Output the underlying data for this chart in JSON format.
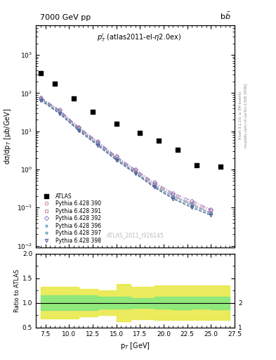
{
  "title_left": "7000 GeV pp",
  "title_right": "b$\\bar{b}$",
  "annotation": "$p_T^l$ (atlas2011-el-$\\eta$2.0ex)",
  "watermark": "ATLAS_2011_I926145",
  "rivet_text": "Rivet 3.1.10, ≥ 3M events",
  "arxiv_text": "mcplots.cern.ch [arXiv:1306.3436]",
  "ylabel_main": "dσ/dp$_T$ [μb/GeV]",
  "ylabel_ratio": "Ratio to ATLAS",
  "xlabel": "p$_T$ [GeV]",
  "atlas_x": [
    7.0,
    8.5,
    10.5,
    12.5,
    15.0,
    17.5,
    19.5,
    21.5,
    23.5,
    26.0
  ],
  "atlas_y": [
    330,
    175,
    72,
    32,
    16,
    9.0,
    5.8,
    3.3,
    1.3,
    1.2
  ],
  "pt_values": [
    7.0,
    9.0,
    11.0,
    13.0,
    15.0,
    17.0,
    19.0,
    21.0,
    23.0,
    25.0
  ],
  "py390_y": [
    75,
    35,
    12.5,
    5.2,
    2.1,
    0.95,
    0.43,
    0.22,
    0.13,
    0.085
  ],
  "py391_y": [
    73,
    33,
    12.0,
    5.0,
    2.0,
    0.88,
    0.4,
    0.2,
    0.12,
    0.075
  ],
  "py392_y": [
    77,
    36,
    13.0,
    5.5,
    2.2,
    1.0,
    0.46,
    0.24,
    0.15,
    0.09
  ],
  "py396_y": [
    70,
    32,
    11.5,
    4.8,
    1.95,
    0.85,
    0.38,
    0.2,
    0.12,
    0.072
  ],
  "py397_y": [
    68,
    30,
    11.0,
    4.6,
    1.85,
    0.82,
    0.36,
    0.18,
    0.11,
    0.068
  ],
  "py398_y": [
    65,
    29,
    10.5,
    4.3,
    1.75,
    0.78,
    0.34,
    0.17,
    0.1,
    0.063
  ],
  "colors390": "#c88090",
  "colors391": "#c88090",
  "colors392": "#8878c8",
  "colors396": "#60a0c0",
  "colors397": "#60a0c0",
  "colors398": "#404888",
  "ls390": "-.",
  "ls391": "-.",
  "ls392": "-.",
  "ls396": "--",
  "ls397": "--",
  "ls398": "--",
  "mk390": "o",
  "mk391": "s",
  "mk392": "D",
  "mk396": "*",
  "mk397": "*",
  "mk398": "v",
  "ratio_x": [
    7.0,
    9.0,
    11.0,
    13.0,
    15.0,
    16.5,
    17.5,
    19.0,
    21.0,
    23.0,
    25.0,
    27.0
  ],
  "ratio_green_lo": [
    0.85,
    0.85,
    0.85,
    0.88,
    0.88,
    0.9,
    0.9,
    0.88,
    0.87,
    0.88,
    0.87,
    0.87
  ],
  "ratio_green_hi": [
    1.15,
    1.15,
    1.15,
    1.12,
    1.12,
    1.1,
    1.1,
    1.12,
    1.13,
    1.12,
    1.13,
    1.13
  ],
  "ratio_yellow_lo": [
    0.68,
    0.68,
    0.72,
    0.75,
    0.62,
    0.67,
    0.67,
    0.65,
    0.65,
    0.65,
    0.65,
    0.65
  ],
  "ratio_yellow_hi": [
    1.32,
    1.32,
    1.28,
    1.25,
    1.38,
    1.33,
    1.33,
    1.35,
    1.35,
    1.35,
    1.35,
    1.35
  ],
  "ylim_main": [
    0.009,
    6000
  ],
  "xlim": [
    6.5,
    27.5
  ],
  "ylim_ratio": [
    0.5,
    2.0
  ],
  "bg_color": "#ffffff"
}
